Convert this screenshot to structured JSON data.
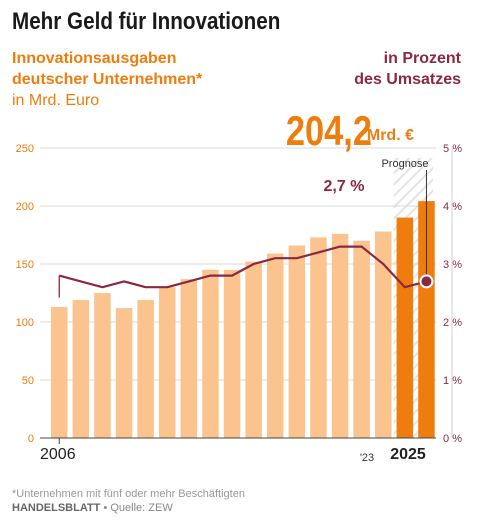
{
  "title": "Mehr Geld für Innovationen",
  "left_heading": [
    "Innovationsausgaben",
    "deutscher Unternehmen*"
  ],
  "left_unit": "in Mrd. Euro",
  "right_heading": [
    "in Prozent",
    "des Umsatzes"
  ],
  "footnote": "*Unternehmen mit fünf oder mehr Beschäftigten",
  "source_brand": "HANDELSBLATT",
  "source_text": " • Quelle: ZEW",
  "colors": {
    "bar_light": "#fbc48f",
    "bar_dark": "#ee7d0e",
    "line": "#8b2942",
    "forecast_hatch": "#e4e4e4"
  },
  "chart_data": {
    "type": "bar+line",
    "left_axis": {
      "min": 0,
      "max": 250,
      "ticks": [
        "0",
        "50",
        "100",
        "150",
        "200",
        "250"
      ]
    },
    "right_axis": {
      "min": 0,
      "max": 5,
      "ticks": [
        "0 %",
        "1 %",
        "2 %",
        "3 %",
        "4 %",
        "5 %"
      ]
    },
    "x_labels": {
      "first": "2006",
      "last_actual": "'23",
      "last": "2025"
    },
    "bars": [
      {
        "year": 2006,
        "value": 113
      },
      {
        "year": 2007,
        "value": 119
      },
      {
        "year": 2008,
        "value": 125
      },
      {
        "year": 2009,
        "value": 112
      },
      {
        "year": 2010,
        "value": 119
      },
      {
        "year": 2011,
        "value": 130
      },
      {
        "year": 2012,
        "value": 137
      },
      {
        "year": 2013,
        "value": 145
      },
      {
        "year": 2014,
        "value": 145
      },
      {
        "year": 2015,
        "value": 152
      },
      {
        "year": 2016,
        "value": 159
      },
      {
        "year": 2017,
        "value": 166
      },
      {
        "year": 2018,
        "value": 173
      },
      {
        "year": 2019,
        "value": 176
      },
      {
        "year": 2020,
        "value": 170
      },
      {
        "year": 2021,
        "value": 178
      },
      {
        "year": 2022,
        "value": 190,
        "style": "dark"
      },
      {
        "year": 2023,
        "value": 204.2,
        "style": "dark"
      }
    ],
    "line_series": {
      "name": "in Prozent des Umsatzes",
      "values": [
        2.8,
        2.7,
        2.6,
        2.7,
        2.6,
        2.6,
        2.7,
        2.8,
        2.8,
        3.0,
        3.1,
        3.1,
        3.2,
        3.3,
        3.3,
        3.0,
        2.6,
        2.7
      ]
    },
    "annotations": {
      "big_value": "204,2",
      "big_unit": "Mrd. €",
      "percent_label": "2,7 %",
      "forecast_label": "Prognose"
    }
  }
}
